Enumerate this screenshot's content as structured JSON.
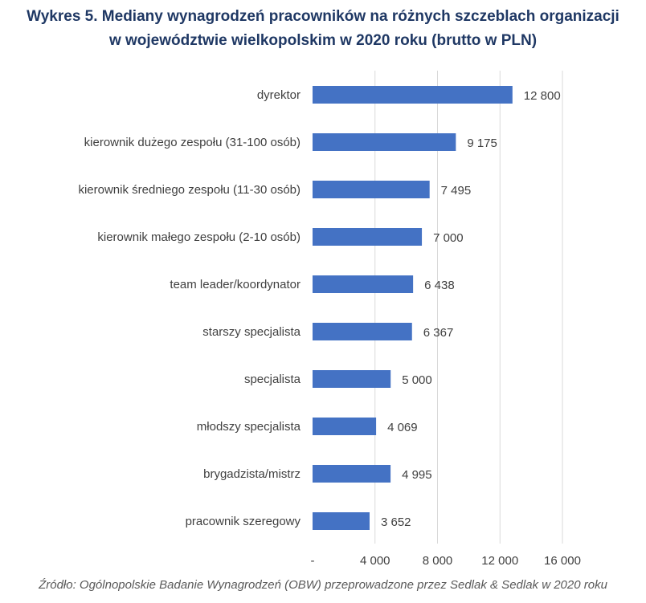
{
  "title": {
    "line1": "Wykres 5. Mediany wynagrodzeń pracowników na różnych szczeblach organizacji",
    "line2": "w województwie wielkopolskim w 2020 roku (brutto w PLN)"
  },
  "source": "Źródło: Ogólnopolskie Badanie Wynagrodzeń (OBW) przeprowadzone przez Sedlak & Sedlak w 2020 roku",
  "colors": {
    "bar": "#4472C4",
    "grid": "#D9D9D9",
    "label": "#404040",
    "title": "#1F3864"
  },
  "chart_data": {
    "type": "bar",
    "orientation": "horizontal",
    "title": "Wykres 5. Mediany wynagrodzeń pracowników na różnych szczeblach organizacji w województwie wielkopolskim w 2020 roku (brutto w PLN)",
    "categories": [
      "dyrektor",
      "kierownik dużego zespołu (31-100 osób)",
      "kierownik średniego zespołu (11-30 osób)",
      "kierownik małego zespołu (2-10 osób)",
      "team leader/koordynator",
      "starszy specjalista",
      "specjalista",
      "młodszy specjalista",
      "brygadzista/mistrz",
      "pracownik szeregowy"
    ],
    "values": [
      12800,
      9175,
      7495,
      7000,
      6438,
      6367,
      5000,
      4069,
      4995,
      3652
    ],
    "value_labels": [
      "12 800",
      "9 175",
      "7 495",
      "7 000",
      "6 438",
      "6 367",
      "5 000",
      "4 069",
      "4 995",
      "3 652"
    ],
    "xlim": [
      0,
      16000
    ],
    "xticks": [
      0,
      4000,
      8000,
      12000,
      16000
    ],
    "xtick_labels": [
      "-",
      "4 000",
      "8 000",
      "12 000",
      "16 000"
    ],
    "xlabel": "",
    "ylabel": "",
    "grid": true,
    "legend": "none"
  }
}
